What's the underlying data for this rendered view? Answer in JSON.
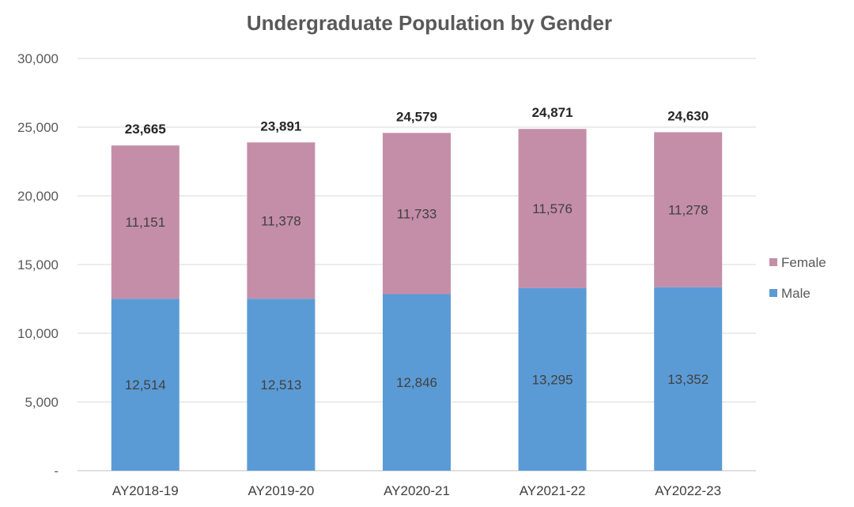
{
  "chart_data": {
    "type": "bar",
    "stacked": true,
    "title": "Undergraduate Population by Gender",
    "categories": [
      "AY2018-19",
      "AY2019-20",
      "AY2020-21",
      "AY2021-22",
      "AY2022-23"
    ],
    "series": [
      {
        "name": "Male",
        "color": "#5B9BD5",
        "values": [
          12514,
          12513,
          12846,
          13295,
          13352
        ],
        "labels": [
          "12,514",
          "12,513",
          "12,846",
          "13,295",
          "13,352"
        ]
      },
      {
        "name": "Female",
        "color": "#C48EA8",
        "values": [
          11151,
          11378,
          11733,
          11576,
          11278
        ],
        "labels": [
          "11,151",
          "11,378",
          "11,733",
          "11,576",
          "11,278"
        ]
      }
    ],
    "totals": [
      "23,665",
      "23,891",
      "24,579",
      "24,871",
      "24,630"
    ],
    "ylim": [
      0,
      30000
    ],
    "yticks": [
      0,
      5000,
      10000,
      15000,
      20000,
      25000,
      30000
    ],
    "ytick_labels": [
      "-",
      "5,000",
      "10,000",
      "15,000",
      "20,000",
      "25,000",
      "30,000"
    ],
    "legend": {
      "position": "right",
      "entries": [
        "Female",
        "Male"
      ]
    },
    "grid": true,
    "xlabel": "",
    "ylabel": ""
  }
}
